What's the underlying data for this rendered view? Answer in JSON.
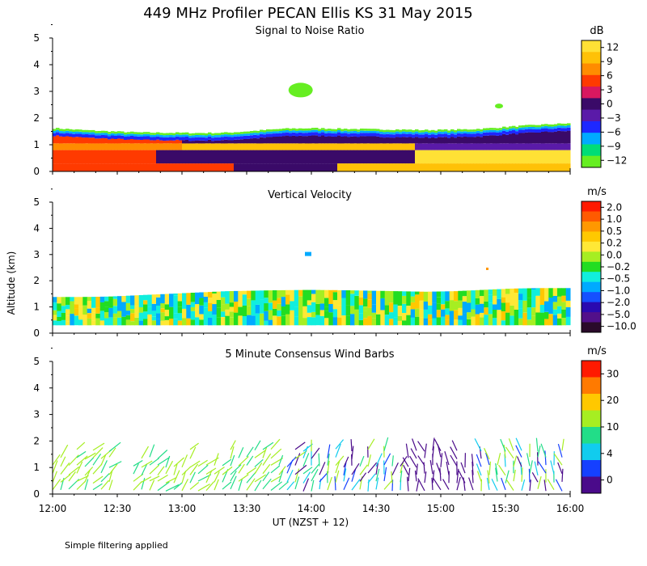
{
  "chart_data": {
    "type": "heatmap",
    "title": "449 MHz Profiler PECAN Ellis KS 31 May 2015",
    "ylabel": "Altitude (km)",
    "xlabel": "UT  (NZST + 12)",
    "footnote": "Simple filtering applied",
    "x_ticks": [
      "12:00",
      "12:30",
      "13:00",
      "13:30",
      "14:00",
      "14:30",
      "15:00",
      "15:30",
      "16:00"
    ],
    "y_ticks": [
      "0",
      "1",
      "2",
      "3",
      "4",
      "5"
    ],
    "xlim_hours": [
      12.0,
      16.0
    ],
    "ylim_km": [
      0,
      5
    ],
    "panels": [
      {
        "id": "snr",
        "title": "Signal to Noise Ratio",
        "unit": "dB",
        "colorbar": {
          "labels": [
            "12",
            "9",
            "6",
            "3",
            "0",
            "−3",
            "−6",
            "−9",
            "−12"
          ],
          "colors": [
            "#ffe135",
            "#ffc107",
            "#ff8c00",
            "#ff3a00",
            "#d81860",
            "#3a0a68",
            "#5a1aa8",
            "#1e28ff",
            "#00aaff",
            "#00dd77",
            "#66ee22"
          ]
        },
        "echo_top_km": [
          1.62,
          1.55,
          1.5,
          1.46,
          1.45,
          1.44,
          1.45,
          1.52,
          1.6,
          1.62,
          1.6,
          1.58,
          1.57,
          1.55,
          1.56,
          1.6,
          1.68,
          1.75,
          1.8
        ],
        "elevated_echo": {
          "time": "13:55",
          "altitude_km": [
            2.8,
            3.3
          ]
        }
      },
      {
        "id": "vv",
        "title": "Vertical Velocity",
        "unit": "m/s",
        "colorbar": {
          "labels": [
            "2.0",
            "1.0",
            "0.5",
            "0.2",
            "0.0",
            "−0.2",
            "−0.5",
            "−1.0",
            "−2.0",
            "−5.0",
            "−10.0"
          ],
          "colors": [
            "#ff1a00",
            "#ff5a00",
            "#ff9800",
            "#ffc800",
            "#ffe836",
            "#a6ee22",
            "#22dd22",
            "#11eedd",
            "#00aaff",
            "#1550ff",
            "#2a0ab0",
            "#52108a",
            "#2a0a2a"
          ]
        },
        "echo_top_km": [
          1.38,
          1.38,
          1.4,
          1.45,
          1.5,
          1.55,
          1.6,
          1.62,
          1.64,
          1.65,
          1.64,
          1.62,
          1.6,
          1.58,
          1.6,
          1.65,
          1.7,
          1.72,
          1.72
        ]
      },
      {
        "id": "wind",
        "title": "5 Minute Consensus Wind Barbs",
        "unit": "m/s",
        "colorbar": {
          "labels": [
            "30",
            "20",
            "10",
            "4",
            "0"
          ],
          "colors": [
            "#ff1a00",
            "#ff7a00",
            "#ffc800",
            "#a6ee22",
            "#22dd88",
            "#11ccee",
            "#1540ff",
            "#4a0a8a"
          ]
        },
        "barb_top_km": 1.8
      }
    ]
  }
}
